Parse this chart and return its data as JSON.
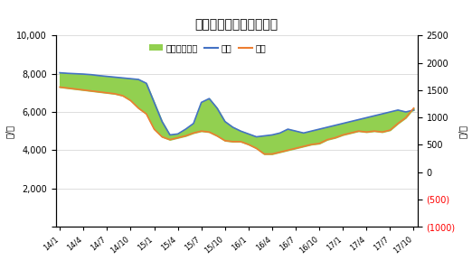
{
  "title": "山东地炼汽柴油价格走势",
  "ylabel_left": "元/吨",
  "ylabel_right": "元/吨",
  "ylim_left": [
    0,
    10000
  ],
  "ylim_right": [
    -1000,
    2500
  ],
  "yticks_left": [
    0,
    2000,
    4000,
    6000,
    8000,
    10000
  ],
  "yticks_right": [
    -1000,
    -500,
    0,
    500,
    1000,
    1500,
    2000,
    2500
  ],
  "xtick_labels": [
    "14/1",
    "14/4",
    "14/7",
    "14/10",
    "15/1",
    "15/4",
    "15/7",
    "15/10",
    "16/1",
    "16/4",
    "16/7",
    "16/10",
    "17/1",
    "17/4",
    "17/7",
    "17/10"
  ],
  "color_gasoline": "#4472c4",
  "color_diesel": "#ed7d31",
  "color_spread": "#92d050",
  "color_negative_ytick": "#ff0000",
  "background": "#ffffff",
  "legend_labels": [
    "价差（右轴）",
    "汽油",
    "柴油"
  ],
  "gasoline": [
    8050,
    8020,
    8000,
    7980,
    7950,
    7900,
    7860,
    7820,
    7780,
    7740,
    7700,
    7500,
    6500,
    5500,
    4800,
    4850,
    5100,
    5400,
    6500,
    6700,
    6200,
    5500,
    5200,
    5000,
    4850,
    4700,
    4750,
    4800,
    4900,
    5100,
    5000,
    4900,
    5000,
    5100,
    5200,
    5300,
    5400,
    5500,
    5600,
    5700,
    5800,
    5900,
    6000,
    6100,
    6000,
    6100
  ],
  "diesel": [
    7300,
    7250,
    7200,
    7150,
    7100,
    7050,
    7000,
    6950,
    6850,
    6600,
    6200,
    5900,
    5100,
    4700,
    4550,
    4650,
    4750,
    4900,
    5000,
    4950,
    4750,
    4500,
    4450,
    4450,
    4300,
    4100,
    3800,
    3800,
    3900,
    4000,
    4100,
    4200,
    4300,
    4350,
    4550,
    4650,
    4800,
    4900,
    5000,
    4950,
    5000,
    4950,
    5050,
    5400,
    5700,
    6200
  ],
  "figsize": [
    5.22,
    2.88
  ],
  "dpi": 100
}
